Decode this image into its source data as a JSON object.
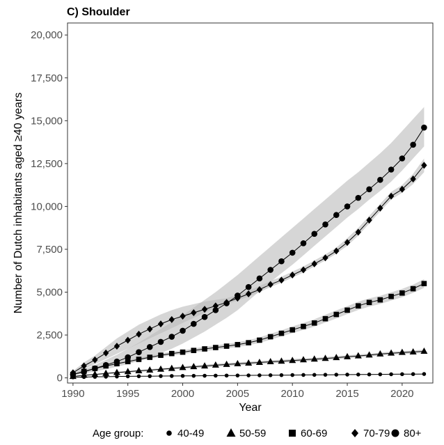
{
  "chart_data": {
    "type": "line",
    "title": "C) Shoulder",
    "xlabel": "Year",
    "ylabel": "Number of Dutch inhabitants aged ≥40 years",
    "xlim": [
      1989.5,
      2022.8
    ],
    "ylim": [
      -300,
      20700
    ],
    "x_ticks": [
      1990,
      1995,
      2000,
      2005,
      2010,
      2015,
      2020
    ],
    "x_tick_labels": [
      "1990",
      "1995",
      "2000",
      "2005",
      "2010",
      "2015",
      "2020"
    ],
    "y_ticks": [
      0,
      2500,
      5000,
      7500,
      10000,
      12500,
      15000,
      17500,
      20000
    ],
    "y_tick_labels": [
      "0",
      "2,500",
      "5,000",
      "7,500",
      "10,000",
      "12,500",
      "15,000",
      "17,500",
      "20,000"
    ],
    "grid": false,
    "legend": {
      "position": "bottom",
      "title": "Age group:"
    },
    "confidence_band_color": "#bdbdbd",
    "line_color": "#000000",
    "x": [
      1990,
      1991,
      1992,
      1993,
      1994,
      1995,
      1996,
      1997,
      1998,
      1999,
      2000,
      2001,
      2002,
      2003,
      2004,
      2005,
      2006,
      2007,
      2008,
      2009,
      2010,
      2011,
      2012,
      2013,
      2014,
      2015,
      2016,
      2017,
      2018,
      2019,
      2020,
      2021,
      2022
    ],
    "series": [
      {
        "name": "40-49",
        "marker": "circle-small",
        "values": [
          30,
          50,
          60,
          70,
          80,
          90,
          95,
          100,
          105,
          110,
          115,
          120,
          125,
          130,
          135,
          140,
          145,
          150,
          155,
          160,
          165,
          170,
          175,
          180,
          185,
          190,
          195,
          200,
          205,
          210,
          215,
          220,
          225
        ],
        "lower": [
          20,
          35,
          45,
          55,
          60,
          70,
          75,
          80,
          85,
          90,
          95,
          100,
          105,
          110,
          115,
          120,
          125,
          130,
          135,
          140,
          145,
          150,
          155,
          160,
          165,
          170,
          175,
          180,
          185,
          190,
          195,
          200,
          205
        ],
        "upper": [
          40,
          65,
          75,
          85,
          100,
          110,
          115,
          120,
          125,
          130,
          135,
          140,
          145,
          150,
          155,
          160,
          165,
          170,
          175,
          180,
          185,
          190,
          195,
          200,
          205,
          210,
          215,
          220,
          225,
          230,
          235,
          240,
          245
        ]
      },
      {
        "name": "50-59",
        "marker": "triangle",
        "values": [
          80,
          150,
          200,
          260,
          310,
          360,
          410,
          450,
          500,
          550,
          600,
          650,
          690,
          740,
          780,
          820,
          860,
          900,
          940,
          970,
          1010,
          1050,
          1090,
          1130,
          1180,
          1230,
          1280,
          1330,
          1390,
          1440,
          1480,
          1510,
          1550
        ],
        "lower": [
          50,
          110,
          160,
          210,
          260,
          300,
          350,
          390,
          440,
          480,
          530,
          570,
          610,
          650,
          690,
          730,
          770,
          810,
          850,
          880,
          920,
          960,
          1000,
          1040,
          1090,
          1140,
          1190,
          1240,
          1300,
          1350,
          1390,
          1420,
          1450
        ],
        "upper": [
          110,
          190,
          240,
          310,
          360,
          420,
          470,
          510,
          560,
          620,
          670,
          730,
          770,
          830,
          870,
          910,
          950,
          990,
          1030,
          1060,
          1100,
          1140,
          1180,
          1220,
          1270,
          1320,
          1370,
          1420,
          1480,
          1530,
          1570,
          1600,
          1650
        ]
      },
      {
        "name": "60-69",
        "marker": "square",
        "values": [
          200,
          380,
          550,
          700,
          830,
          950,
          1080,
          1200,
          1320,
          1420,
          1500,
          1600,
          1690,
          1770,
          1850,
          1940,
          2050,
          2200,
          2400,
          2600,
          2800,
          3000,
          3200,
          3450,
          3700,
          3950,
          4200,
          4400,
          4550,
          4750,
          4950,
          5200,
          5500
        ],
        "lower": [
          150,
          320,
          480,
          620,
          750,
          870,
          990,
          1100,
          1210,
          1310,
          1390,
          1480,
          1560,
          1640,
          1720,
          1800,
          1900,
          2040,
          2230,
          2420,
          2610,
          2800,
          2990,
          3230,
          3470,
          3720,
          3960,
          4160,
          4310,
          4510,
          4710,
          4960,
          5250
        ],
        "upper": [
          260,
          450,
          620,
          780,
          910,
          1030,
          1170,
          1300,
          1430,
          1530,
          1610,
          1720,
          1820,
          1900,
          1980,
          2080,
          2200,
          2360,
          2570,
          2780,
          3000,
          3200,
          3420,
          3680,
          3940,
          4180,
          4440,
          4640,
          4790,
          4990,
          5190,
          5440,
          5760
        ]
      },
      {
        "name": "70-79",
        "marker": "diamond",
        "values": [
          300,
          700,
          1050,
          1450,
          1850,
          2200,
          2550,
          2850,
          3150,
          3400,
          3600,
          3800,
          4000,
          4200,
          4400,
          4650,
          4900,
          5150,
          5450,
          5700,
          6000,
          6300,
          6650,
          7000,
          7400,
          7900,
          8500,
          9200,
          9900,
          10600,
          11000,
          11600,
          12400
        ],
        "lower": [
          200,
          500,
          800,
          1100,
          1400,
          1700,
          2000,
          2300,
          2600,
          2900,
          3200,
          3500,
          3800,
          4100,
          4300,
          4500,
          4750,
          5000,
          5300,
          5550,
          5850,
          6150,
          6500,
          6850,
          7250,
          7700,
          8300,
          9000,
          9700,
          10400,
          10800,
          11300,
          12000
        ],
        "upper": [
          400,
          900,
          1300,
          1800,
          2300,
          2700,
          3100,
          3400,
          3700,
          3950,
          4150,
          4300,
          4450,
          4550,
          4650,
          4850,
          5100,
          5350,
          5650,
          5900,
          6200,
          6500,
          6850,
          7200,
          7600,
          8150,
          8750,
          9450,
          10150,
          10850,
          11250,
          11900,
          12800
        ]
      },
      {
        "name": "80+",
        "marker": "circle",
        "values": [
          200,
          350,
          550,
          750,
          950,
          1200,
          1500,
          1800,
          2100,
          2400,
          2750,
          3150,
          3550,
          3950,
          4350,
          4800,
          5300,
          5800,
          6300,
          6800,
          7300,
          7850,
          8400,
          8950,
          9500,
          10000,
          10500,
          11000,
          11550,
          12150,
          12800,
          13600,
          14600
        ],
        "lower": [
          150,
          250,
          380,
          500,
          650,
          800,
          1000,
          1200,
          1450,
          1700,
          2000,
          2350,
          2700,
          3100,
          3500,
          3950,
          4500,
          5050,
          5600,
          6100,
          6600,
          7150,
          7700,
          8250,
          8800,
          9350,
          9850,
          10400,
          10900,
          11450,
          12100,
          12800,
          13500
        ],
        "upper": [
          280,
          480,
          750,
          1050,
          1350,
          1700,
          2050,
          2450,
          2850,
          3250,
          3650,
          4100,
          4550,
          5000,
          5500,
          6000,
          6550,
          7100,
          7650,
          8200,
          8750,
          9300,
          9850,
          10400,
          10950,
          11500,
          12000,
          12550,
          13100,
          13700,
          14400,
          15100,
          15800
        ]
      }
    ]
  }
}
